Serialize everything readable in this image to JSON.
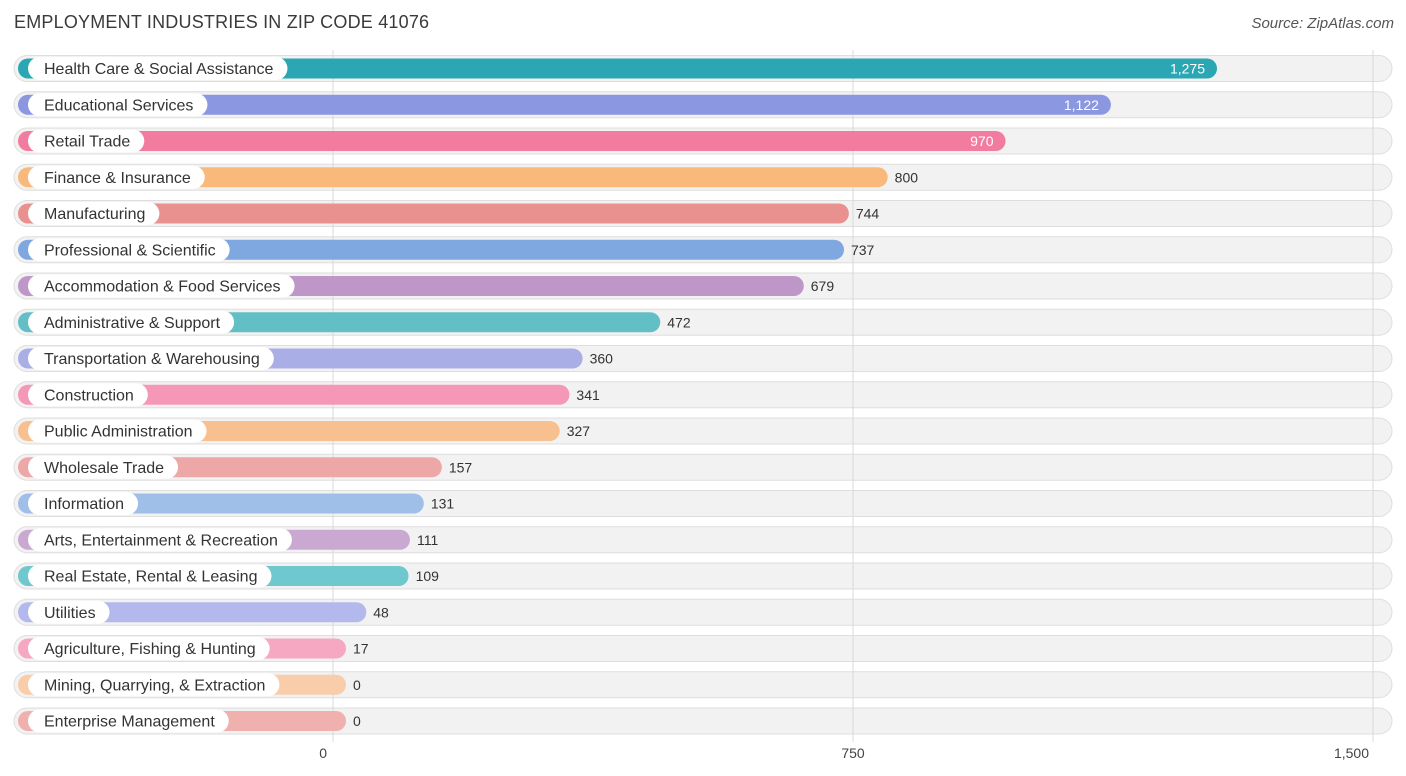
{
  "chart_data": {
    "type": "bar",
    "orientation": "horizontal",
    "title": "EMPLOYMENT INDUSTRIES IN ZIP CODE 41076",
    "source": "Source: ZipAtlas.com",
    "xlim": [
      0,
      1500
    ],
    "xticks": [
      0,
      750,
      1500
    ],
    "xtick_labels": [
      "0",
      "750",
      "1,500"
    ],
    "grid": true,
    "categories": [
      "Health Care & Social Assistance",
      "Educational Services",
      "Retail Trade",
      "Finance & Insurance",
      "Manufacturing",
      "Professional & Scientific",
      "Accommodation & Food Services",
      "Administrative & Support",
      "Transportation & Warehousing",
      "Construction",
      "Public Administration",
      "Wholesale Trade",
      "Information",
      "Arts, Entertainment & Recreation",
      "Real Estate, Rental & Leasing",
      "Utilities",
      "Agriculture, Fishing & Hunting",
      "Mining, Quarrying, & Extraction",
      "Enterprise Management"
    ],
    "values": [
      1275,
      1122,
      970,
      800,
      744,
      737,
      679,
      472,
      360,
      341,
      327,
      157,
      131,
      111,
      109,
      48,
      17,
      0,
      0
    ],
    "value_labels": [
      "1,275",
      "1,122",
      "970",
      "800",
      "744",
      "737",
      "679",
      "472",
      "360",
      "341",
      "327",
      "157",
      "131",
      "111",
      "109",
      "48",
      "17",
      "0",
      "0"
    ],
    "colors": [
      "#2aa7b3",
      "#8b97e0",
      "#f27ba0",
      "#f9b97a",
      "#e8918f",
      "#7fa8e0",
      "#be97c8",
      "#62bfc6",
      "#a9aee6",
      "#f597b7",
      "#f9c08f",
      "#eda7a6",
      "#9fbfe9",
      "#c9a9d2",
      "#6ec8cd",
      "#b3b9ec",
      "#f6a7c2",
      "#f9ccaa",
      "#f0b0ae"
    ]
  }
}
